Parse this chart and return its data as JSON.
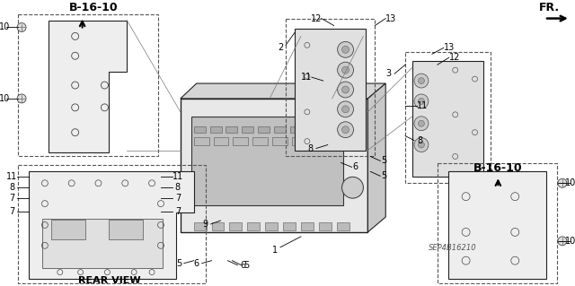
{
  "title": "",
  "bg_color": "#ffffff",
  "diagram_code": "SEP4B16210",
  "b1610_label": "B-16-10",
  "rear_view_label": "REAR VIEW",
  "fr_label": "FR.",
  "line_color": "#000000",
  "dashed_color": "#555555",
  "text_color": "#000000",
  "label_fontsize": 7,
  "bold_fontsize": 9
}
